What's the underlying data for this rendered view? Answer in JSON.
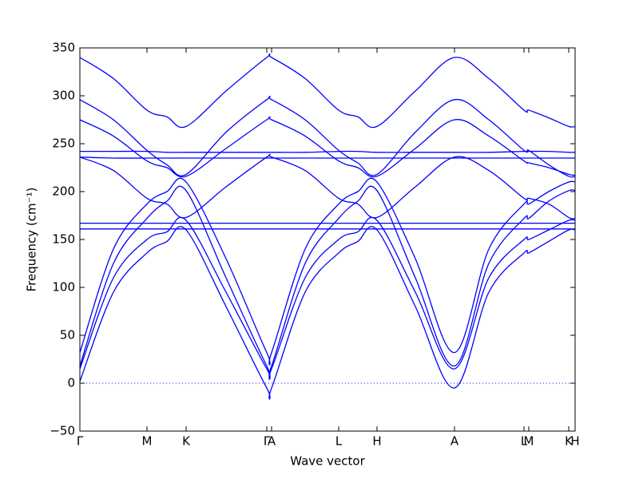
{
  "chart_data": {
    "type": "line",
    "xlabel": "Wave vector",
    "ylabel": "Frequency (cm⁻¹)",
    "color": "#0000ff",
    "x": [
      0,
      0.42,
      0.84,
      1.09,
      1.33,
      1.83,
      2.34,
      2.4,
      2.82,
      3.24,
      3.48,
      3.72,
      4.2,
      4.69,
      5.12,
      5.56,
      5.62,
      5.87,
      6.12,
      6.2
    ],
    "xlim": [
      0,
      6.2
    ],
    "xticks": [
      {
        "value": 0,
        "label": "Γ"
      },
      {
        "value": 0.84,
        "label": "M"
      },
      {
        "value": 1.33,
        "label": "K"
      },
      {
        "value": 2.34,
        "label": "Γ"
      },
      {
        "value": 2.4,
        "label": "A"
      },
      {
        "value": 3.24,
        "label": "L"
      },
      {
        "value": 3.72,
        "label": "H"
      },
      {
        "value": 4.69,
        "label": "A"
      },
      {
        "value": 5.56,
        "label": "L"
      },
      {
        "value": 5.62,
        "label": "M"
      },
      {
        "value": 6.12,
        "label": "K"
      },
      {
        "value": 6.2,
        "label": "H"
      }
    ],
    "ylim": [
      -50,
      350
    ],
    "yticks": [
      {
        "value": -50,
        "label": "−50"
      },
      0,
      50,
      100,
      150,
      200,
      250,
      300,
      350
    ],
    "reference_line": 0,
    "series": [
      {
        "values": [
          340,
          318,
          285,
          278,
          268,
          305,
          340,
          340,
          318,
          285,
          278,
          268,
          305,
          340,
          318,
          285,
          285,
          277,
          268,
          268
        ]
      },
      {
        "values": [
          296,
          275,
          243,
          228,
          218,
          262,
          296,
          296,
          275,
          243,
          230,
          218,
          262,
          296,
          275,
          243,
          243,
          228,
          216,
          216
        ]
      },
      {
        "values": [
          275,
          258,
          232,
          225,
          216,
          245,
          275,
          275,
          258,
          232,
          225,
          216,
          245,
          275,
          258,
          232,
          230,
          225,
          218,
          217
        ]
      },
      {
        "values": [
          242,
          242,
          242,
          241,
          241,
          241,
          241,
          241,
          241,
          242,
          242,
          241,
          241,
          241,
          241,
          242,
          242,
          242,
          241,
          241
        ]
      },
      {
        "values": [
          236,
          235,
          235,
          235,
          235,
          235,
          235,
          235,
          235,
          235,
          235,
          235,
          235,
          235,
          235,
          235,
          235,
          235,
          235,
          235
        ]
      },
      {
        "values": [
          236,
          222,
          193,
          187,
          173,
          205,
          236,
          236,
          222,
          193,
          187,
          173,
          205,
          236,
          222,
          193,
          193,
          187,
          173,
          172
        ]
      },
      {
        "values": [
          32,
          140,
          187,
          200,
          210,
          130,
          32,
          32,
          140,
          187,
          200,
          210,
          130,
          32,
          140,
          187,
          187,
          200,
          210,
          210
        ]
      },
      {
        "values": [
          18,
          125,
          172,
          190,
          201,
          110,
          18,
          18,
          125,
          172,
          190,
          201,
          110,
          18,
          125,
          172,
          172,
          190,
          201,
          201
        ]
      },
      {
        "values": [
          167,
          167,
          167,
          167,
          167,
          167,
          167,
          167,
          167,
          167,
          167,
          167,
          167,
          167,
          167,
          167,
          167,
          167,
          167,
          167
        ]
      },
      {
        "values": [
          161,
          161,
          161,
          161,
          161,
          161,
          161,
          161,
          161,
          161,
          161,
          161,
          161,
          161,
          161,
          161,
          161,
          161,
          161,
          161
        ]
      },
      {
        "values": [
          15,
          110,
          150,
          158,
          170,
          95,
          15,
          15,
          110,
          150,
          158,
          170,
          95,
          15,
          110,
          150,
          150,
          160,
          170,
          170
        ]
      },
      {
        "values": [
          2,
          95,
          136,
          148,
          160,
          80,
          -5,
          -5,
          95,
          136,
          148,
          160,
          80,
          -5,
          95,
          136,
          136,
          148,
          160,
          160
        ]
      }
    ]
  }
}
